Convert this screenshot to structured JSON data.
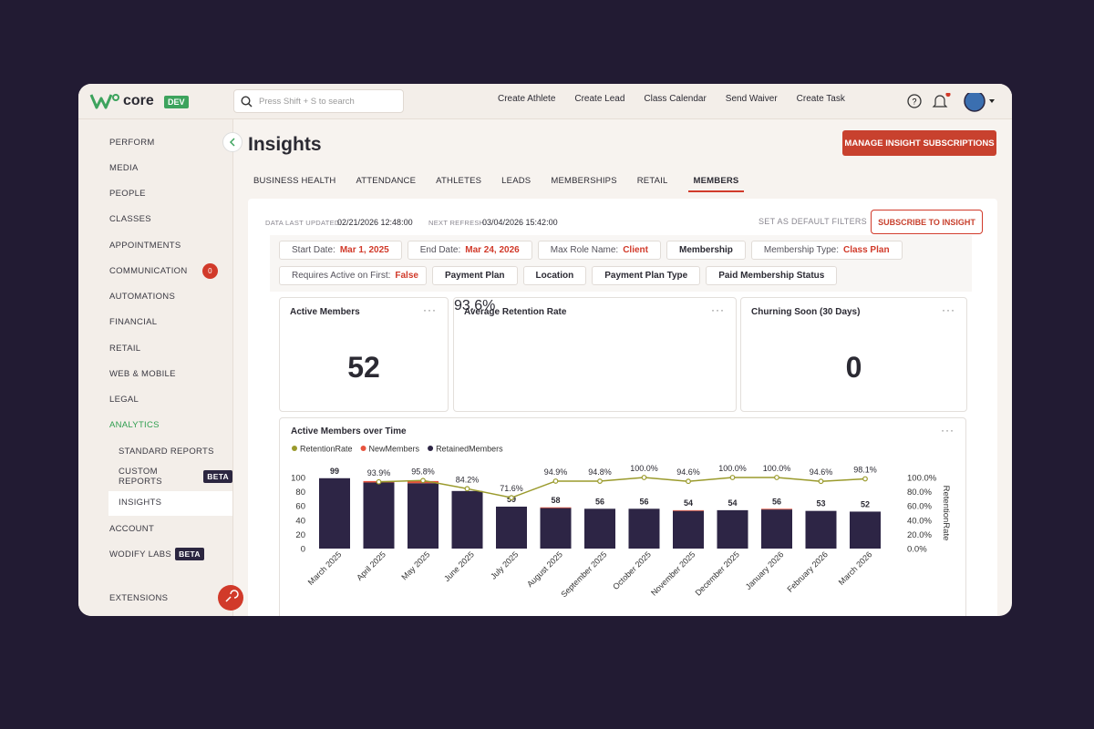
{
  "app": {
    "logo": "core",
    "env": "DEV",
    "search_placeholder": "Press Shift + S to search",
    "actions": [
      "Create Athlete",
      "Create Lead",
      "Class Calendar",
      "Send Waiver",
      "Create Task"
    ]
  },
  "sidebar": {
    "items": [
      {
        "label": "PERFORM"
      },
      {
        "label": "MEDIA"
      },
      {
        "label": "PEOPLE"
      },
      {
        "label": "CLASSES"
      },
      {
        "label": "APPOINTMENTS"
      },
      {
        "label": "COMMUNICATION",
        "badge": 0
      },
      {
        "label": "AUTOMATIONS"
      },
      {
        "label": "FINANCIAL"
      },
      {
        "label": "RETAIL"
      },
      {
        "label": "WEB & MOBILE"
      },
      {
        "label": "LEGAL"
      },
      {
        "label": "ANALYTICS"
      }
    ],
    "analytics_submenu": [
      {
        "label": "STANDARD REPORTS"
      },
      {
        "label": "CUSTOM REPORTS",
        "tag": "BETA"
      },
      {
        "label": "INSIGHTS"
      }
    ],
    "bottom_items": [
      {
        "label": "ACCOUNT"
      },
      {
        "label": "WODIFY LABS",
        "tag": "BETA"
      },
      {
        "label": "EXTENSIONS"
      }
    ]
  },
  "page": {
    "title": "Insights",
    "subscriptions_button": "MANAGE INSIGHT SUBSCRIPTIONS",
    "tabs": [
      "BUSINESS HEALTH",
      "ATTENDANCE",
      "ATHLETES",
      "LEADS",
      "MEMBERSHIPS",
      "RETAIL",
      "MEMBERS"
    ],
    "active_tab": 6
  },
  "status": {
    "updated_label": "DATA LAST UPDATED:",
    "updated": "02/21/2026 12:48:00",
    "refresh_label": "NEXT REFRESH:",
    "refresh": "03/04/2026 15:42:00",
    "default_filters": "SET AS DEFAULT FILTERS",
    "subscribe": "SUBSCRIBE TO INSIGHT"
  },
  "filters": [
    {
      "kind": "date",
      "label": "Start Date:",
      "value": "Mar 1, 2025"
    },
    {
      "kind": "date",
      "label": "End Date:",
      "value": "Mar 24, 2026"
    },
    {
      "kind": "value",
      "label": "Max Role Name:",
      "value": "Client",
      "removable": true
    },
    {
      "kind": "select",
      "label": "Membership"
    },
    {
      "kind": "value",
      "label": "Membership Type:",
      "value": "Class Plan",
      "removable": true
    },
    {
      "kind": "value",
      "label": "Requires Active on First:",
      "value": "False",
      "removable": false
    },
    {
      "kind": "select",
      "label": "Payment Plan"
    },
    {
      "kind": "select",
      "label": "Location"
    },
    {
      "kind": "select",
      "label": "Payment Plan Type"
    },
    {
      "kind": "select",
      "label": "Paid Membership Status"
    }
  ],
  "cards": [
    {
      "title": "Active Members",
      "value": 52
    },
    {
      "title": "Average Retention Rate",
      "value": 93.6,
      "value_label": "93.6%"
    },
    {
      "title": "Churning Soon (30 Days)",
      "value": 0
    }
  ],
  "chart_data": {
    "type": "bar",
    "stacked": true,
    "title": "Active Members over Time",
    "categories": [
      "March 2025",
      "April 2025",
      "May 2025",
      "June 2025",
      "July 2025",
      "August 2025",
      "September 2025",
      "October 2025",
      "November 2025",
      "December 2025",
      "January 2026",
      "February 2026",
      "March 2026"
    ],
    "series": [
      {
        "name": "RetentionRate",
        "color": "#9a9a2c",
        "type": "line",
        "axis": "y2",
        "values": [
          null,
          93.9,
          95.8,
          84.2,
          71.6,
          94.9,
          94.8,
          100.0,
          94.6,
          100.0,
          100.0,
          94.6,
          98.1
        ],
        "value_labels": [
          null,
          "93.9%",
          "95.8%",
          "84.2%",
          "71.6%",
          "94.9%",
          "94.8%",
          "100.0%",
          "94.6%",
          "100.0%",
          "100.0%",
          "94.6%",
          "98.1%"
        ]
      },
      {
        "name": "NewMembers",
        "color": "#e8543e",
        "values": [
          0,
          2,
          3,
          0,
          0,
          1,
          0,
          0,
          1,
          0,
          1,
          0,
          0
        ]
      },
      {
        "name": "RetainedMembers",
        "color": "#2d2545",
        "values": [
          99,
          93,
          92,
          81,
          59,
          57,
          56,
          56,
          53,
          54,
          55,
          53,
          52
        ]
      }
    ],
    "totals": [
      99,
      null,
      null,
      null,
      59,
      58,
      56,
      56,
      54,
      54,
      56,
      53,
      52
    ],
    "ylim": [
      0,
      100
    ],
    "yticks": [
      0,
      20,
      40,
      60,
      80,
      100
    ],
    "y2lim": [
      0,
      100
    ],
    "y2ticks": [
      {
        "value": 0,
        "label": "0.0%"
      },
      {
        "value": 20,
        "label": "20.0%"
      },
      {
        "value": 40,
        "label": "40.0%"
      },
      {
        "value": 60,
        "label": "60.0%"
      },
      {
        "value": 80,
        "label": "80.0%"
      },
      {
        "value": 100,
        "label": "100.0%"
      }
    ],
    "y2label": "RetentionRate",
    "grid": false
  }
}
